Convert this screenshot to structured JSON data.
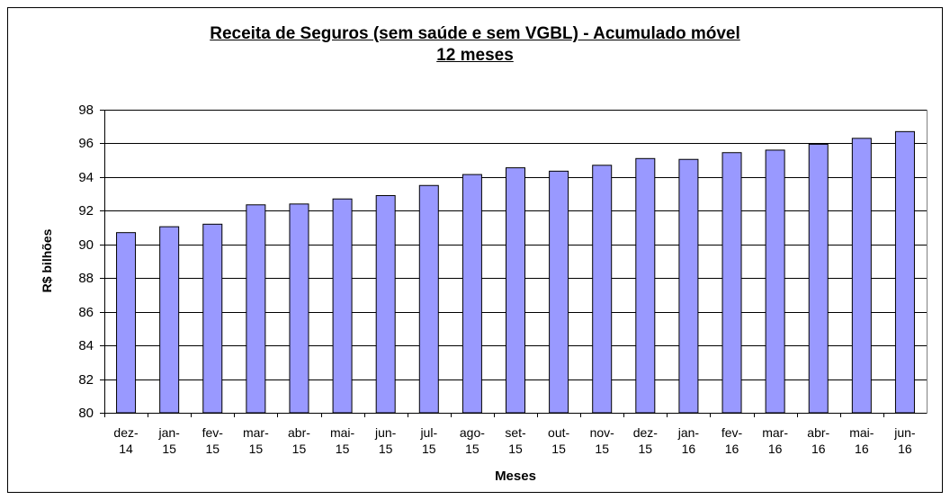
{
  "chart_data": {
    "type": "bar",
    "title": "Receita de Seguros (sem saúde e sem VGBL) - Acumulado móvel\n12 meses",
    "y_label": "R$ bilhões",
    "x_label": "Meses",
    "categories": [
      "dez-\n14",
      "jan-\n15",
      "fev-\n15",
      "mar-\n15",
      "abr-\n15",
      "mai-\n15",
      "jun-\n15",
      "jul-\n15",
      "ago-\n15",
      "set-\n15",
      "out-\n15",
      "nov-\n15",
      "dez-\n15",
      "jan-\n16",
      "fev-\n16",
      "mar-\n16",
      "abr-\n16",
      "mai-\n16",
      "jun-\n16"
    ],
    "values": [
      90.7,
      91.05,
      91.2,
      92.35,
      92.4,
      92.7,
      92.9,
      93.5,
      94.15,
      94.55,
      94.35,
      94.7,
      95.1,
      95.05,
      95.45,
      95.6,
      95.95,
      96.3,
      96.7
    ],
    "color": "#9999ff",
    "ylim": [
      80,
      98
    ],
    "yticks": [
      80,
      82,
      84,
      86,
      88,
      90,
      92,
      94,
      96,
      98
    ],
    "grid": true
  }
}
